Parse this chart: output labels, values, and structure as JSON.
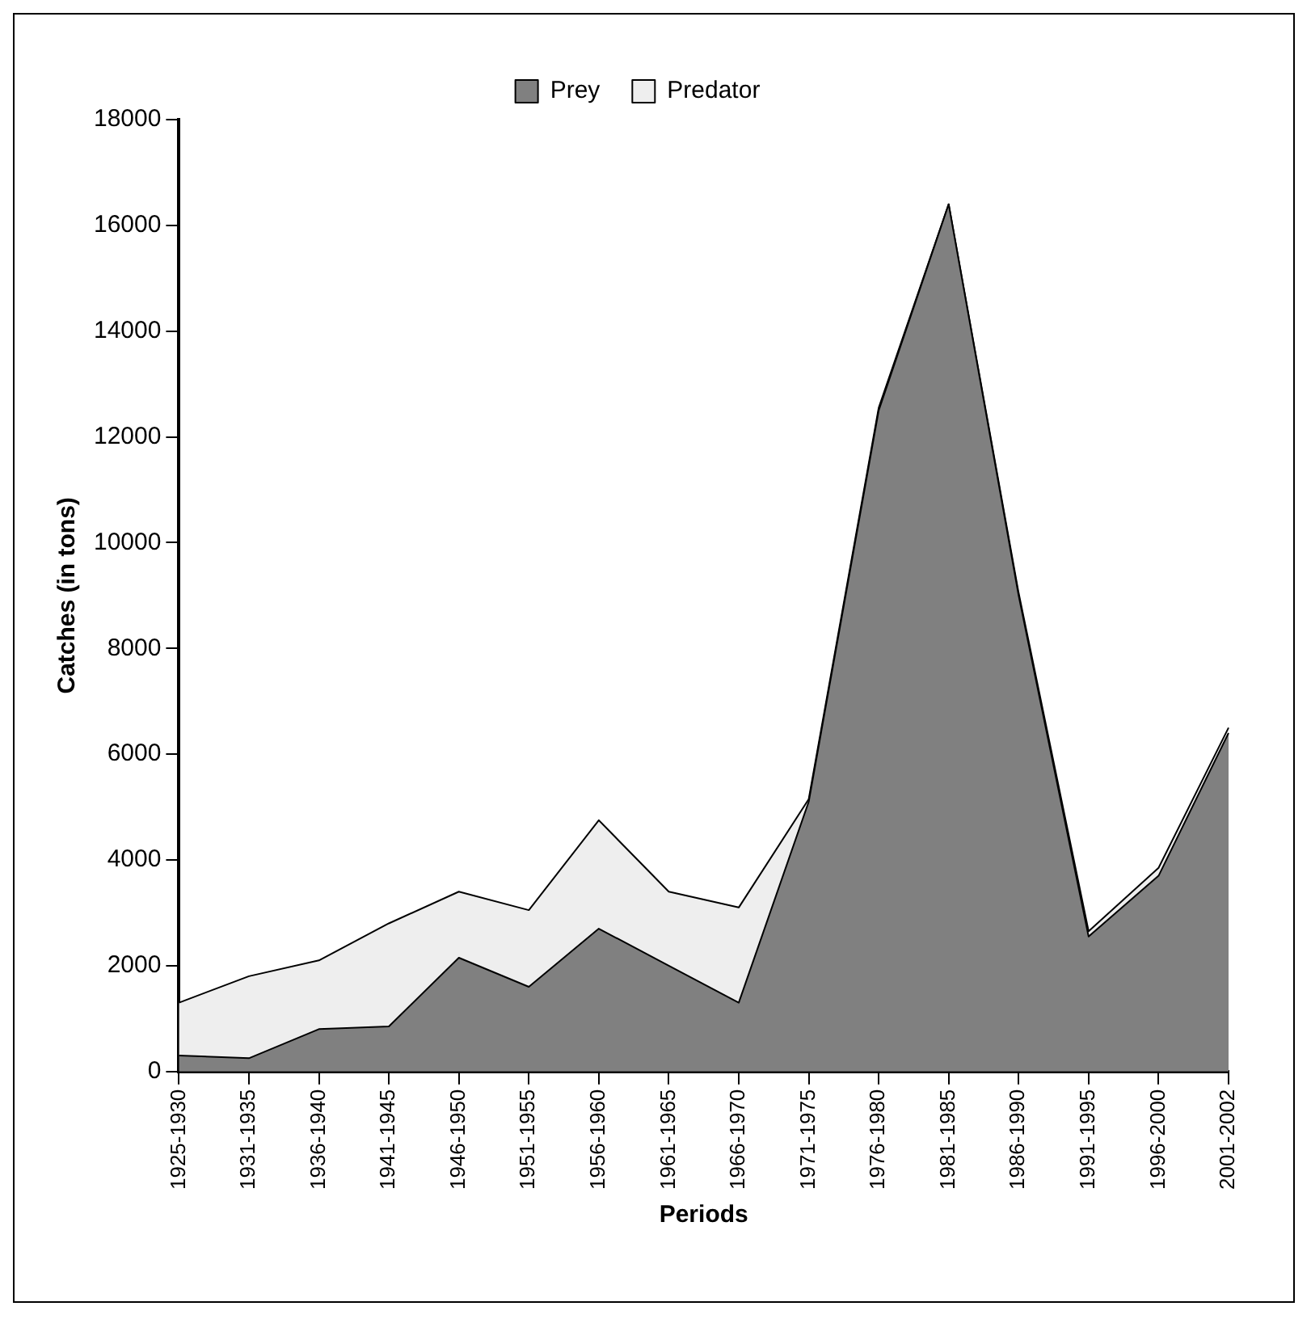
{
  "chart_data": {
    "type": "area",
    "stacked": true,
    "xlabel": "Periods",
    "ylabel": "Catches (in tons)",
    "categories": [
      "1925-1930",
      "1931-1935",
      "1936-1940",
      "1941-1945",
      "1946-1950",
      "1951-1955",
      "1956-1960",
      "1961-1965",
      "1966-1970",
      "1971-1975",
      "1976-1980",
      "1981-1985",
      "1986-1990",
      "1991-1995",
      "1996-2000",
      "2001-2002"
    ],
    "series": [
      {
        "name": "Prey",
        "color": "#808080",
        "values": [
          300,
          250,
          800,
          850,
          2150,
          1600,
          2700,
          2000,
          1300,
          5100,
          12500,
          16400,
          9000,
          2550,
          3700,
          6400
        ]
      },
      {
        "name": "Predator",
        "color": "#eeeeee",
        "values": [
          1000,
          1550,
          1300,
          1950,
          1250,
          1450,
          2050,
          1400,
          1800,
          50,
          50,
          0,
          50,
          100,
          150,
          100
        ]
      }
    ],
    "ylim": [
      0,
      18000
    ],
    "yticks": [
      0,
      2000,
      4000,
      6000,
      8000,
      10000,
      12000,
      14000,
      16000,
      18000
    ],
    "grid": false,
    "legend": "top"
  }
}
